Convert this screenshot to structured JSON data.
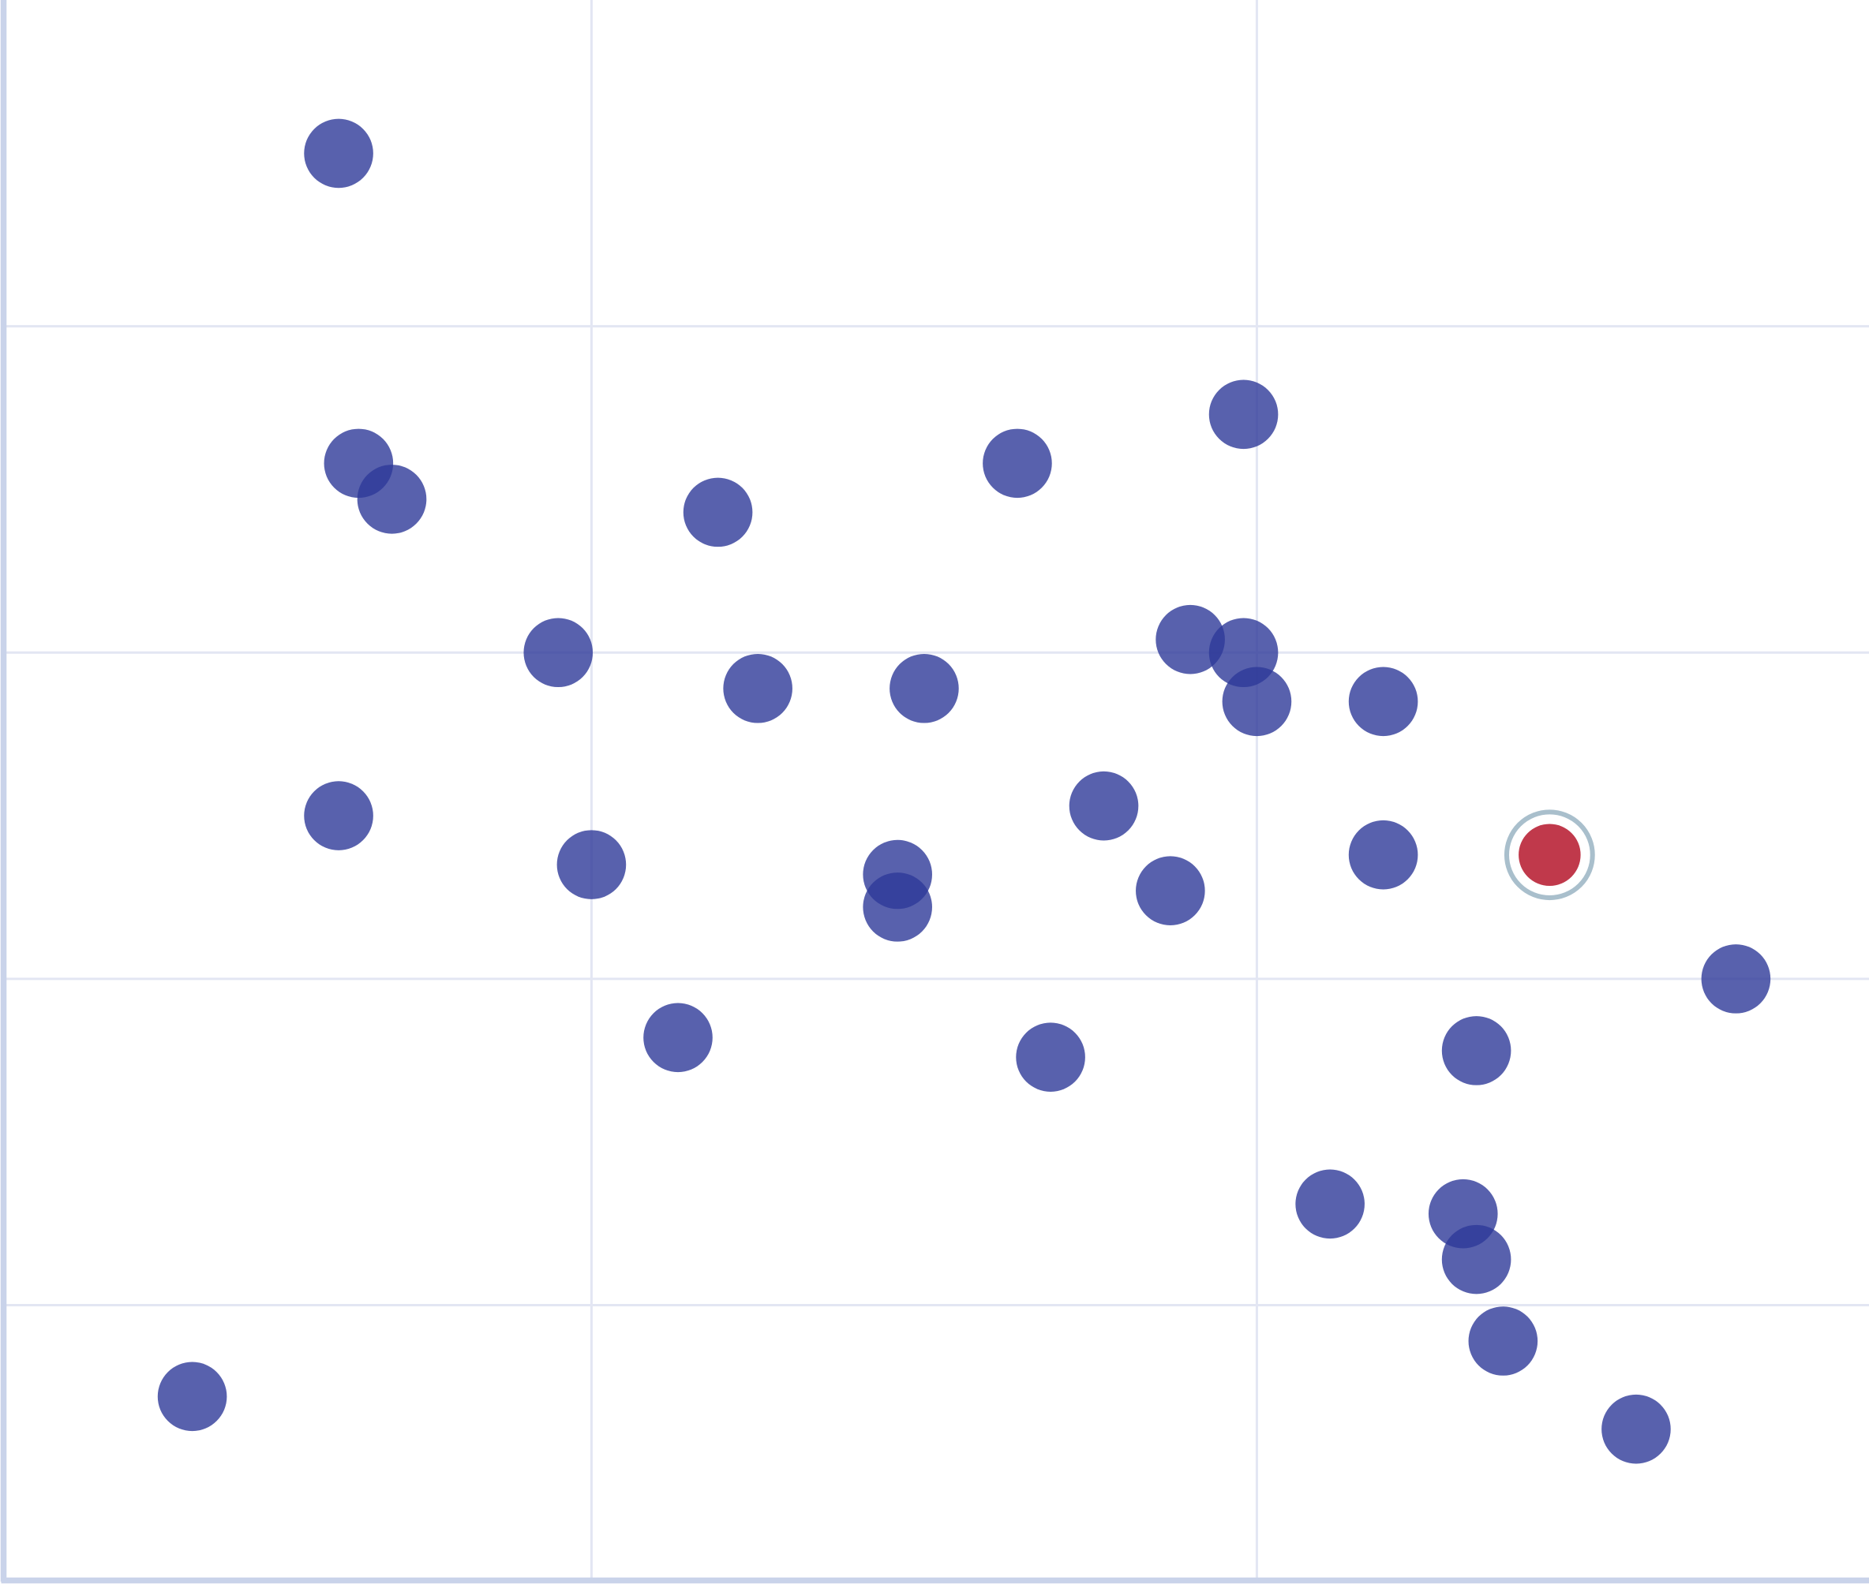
{
  "chart_data": {
    "type": "scatter",
    "title": "",
    "xlabel": "",
    "ylabel": "",
    "xlim": [
      0.12,
      2.92
    ],
    "ylim": [
      0.16,
      5.0
    ],
    "grid": true,
    "x_gridlines": [
      1,
      2
    ],
    "y_gridlines": [
      1,
      2,
      3,
      4
    ],
    "colors": {
      "point": "#2e3a99",
      "highlight": "#c0394b",
      "highlight_ring": "#a9bfcc",
      "grid": "#e3e6f3",
      "axis": "#c9d3ea"
    },
    "series": [
      {
        "points": [
          {
            "x": 0.62,
            "y": 4.53
          },
          {
            "x": 0.65,
            "y": 3.58
          },
          {
            "x": 0.7,
            "y": 3.47
          },
          {
            "x": 1.19,
            "y": 3.43
          },
          {
            "x": 1.64,
            "y": 3.58
          },
          {
            "x": 1.98,
            "y": 3.73
          },
          {
            "x": 0.95,
            "y": 3.0
          },
          {
            "x": 1.25,
            "y": 2.89
          },
          {
            "x": 1.5,
            "y": 2.89
          },
          {
            "x": 1.9,
            "y": 3.04
          },
          {
            "x": 1.98,
            "y": 3.0
          },
          {
            "x": 2.0,
            "y": 2.85
          },
          {
            "x": 2.19,
            "y": 2.85
          },
          {
            "x": 1.77,
            "y": 2.53
          },
          {
            "x": 0.62,
            "y": 2.5
          },
          {
            "x": 1.0,
            "y": 2.35
          },
          {
            "x": 1.46,
            "y": 2.32
          },
          {
            "x": 1.46,
            "y": 2.22
          },
          {
            "x": 1.87,
            "y": 2.27
          },
          {
            "x": 2.19,
            "y": 2.38
          },
          {
            "x": 2.72,
            "y": 2.0
          },
          {
            "x": 1.13,
            "y": 1.82
          },
          {
            "x": 1.69,
            "y": 1.76
          },
          {
            "x": 2.33,
            "y": 1.78
          },
          {
            "x": 2.11,
            "y": 1.31
          },
          {
            "x": 2.31,
            "y": 1.28
          },
          {
            "x": 2.33,
            "y": 1.14
          },
          {
            "x": 2.37,
            "y": 0.89
          },
          {
            "x": 0.4,
            "y": 0.72
          },
          {
            "x": 2.57,
            "y": 0.62
          }
        ]
      }
    ],
    "highlighted_point": {
      "x": 2.44,
      "y": 2.38
    }
  }
}
